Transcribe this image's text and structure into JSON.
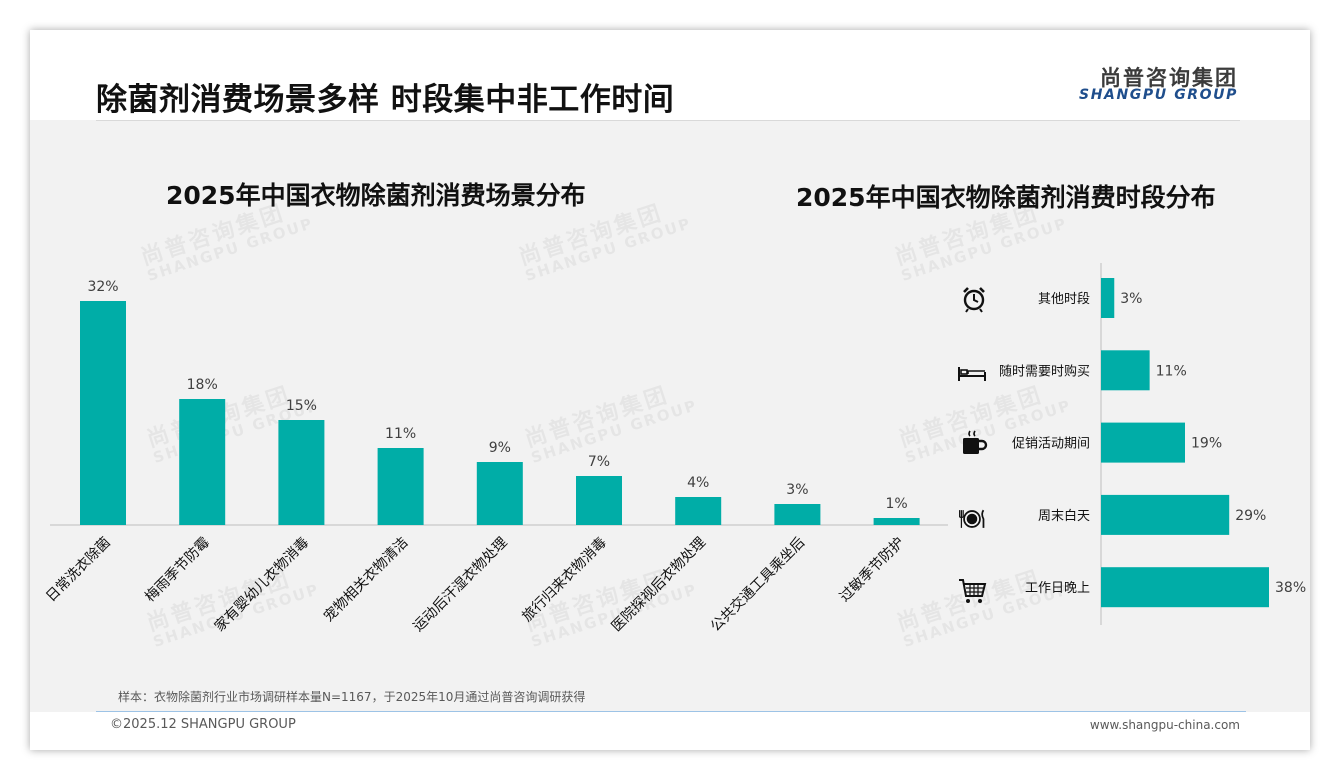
{
  "header": {
    "title": "除菌剂消费场景多样 时段集中非工作时间",
    "logo_cn": "尚普咨询集团",
    "logo_en": "SHANGPU GROUP"
  },
  "watermark": {
    "cn": "尚普咨询集团",
    "en": "SHANGPU GROUP"
  },
  "colors": {
    "bar": "#00ADA7",
    "axis": "#bfbfbf",
    "logo_en": "#1f4e8c"
  },
  "chart_data": [
    {
      "type": "bar",
      "title": "2025年中国衣物除菌剂消费场景分布",
      "categories": [
        "日常洗衣除菌",
        "梅雨季节防霉",
        "家有婴幼儿衣物消毒",
        "宠物相关衣物清洁",
        "运动后汗湿衣物处理",
        "旅行归来衣物消毒",
        "医院探视后衣物处理",
        "公共交通工具乘坐后",
        "过敏季节防护"
      ],
      "values": [
        32,
        18,
        15,
        11,
        9,
        7,
        4,
        3,
        1
      ],
      "data_labels": [
        "32%",
        "18%",
        "15%",
        "11%",
        "9%",
        "7%",
        "4%",
        "3%",
        "1%"
      ],
      "ylim": [
        0,
        32
      ],
      "orientation": "vertical",
      "grid": false
    },
    {
      "type": "bar",
      "title": "2025年中国衣物除菌剂消费时段分布",
      "categories": [
        "其他时段",
        "随时需要时购买",
        "促销活动期间",
        "周末白天",
        "工作日晚上"
      ],
      "values": [
        3,
        11,
        19,
        29,
        38
      ],
      "data_labels": [
        "3%",
        "11%",
        "19%",
        "29%",
        "38%"
      ],
      "icons": [
        "alarm-clock-icon",
        "bed-icon",
        "coffee-cup-icon",
        "dining-plate-icon",
        "shopping-cart-icon"
      ],
      "xlim": [
        0,
        38
      ],
      "orientation": "horizontal",
      "grid": false
    }
  ],
  "footer": {
    "note": "样本：衣物除菌剂行业市场调研样本量N=1167，于2025年10月通过尚普咨询调研获得",
    "copyright": "©2025.12 SHANGPU GROUP",
    "website": "www.shangpu-china.com"
  }
}
